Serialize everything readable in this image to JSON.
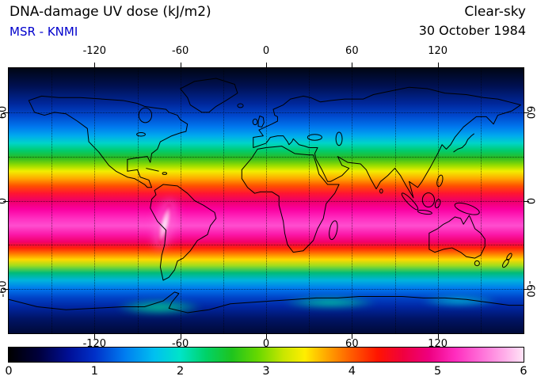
{
  "chart_data": {
    "type": "heatmap",
    "title": "DNA-damage UV dose (kJ/m2)",
    "source": "MSR - KNMI",
    "source_color": "#0000cc",
    "condition": "Clear-sky",
    "date": "30 October 1984",
    "geo": {
      "projection": "equirectangular",
      "lon_range": [
        -180,
        180
      ],
      "lat_range": [
        -90,
        90
      ],
      "lon_ticks": [
        -120,
        -60,
        0,
        60,
        120
      ],
      "lat_ticks": [
        60,
        0,
        -60
      ],
      "grid_step_deg": 30
    },
    "colorbar": {
      "min": 0,
      "max": 6,
      "units": "kJ/m2",
      "ticks": [
        0,
        1,
        2,
        3,
        4,
        5,
        6
      ],
      "stops": [
        {
          "value": 0.0,
          "color": "#000000"
        },
        {
          "value": 0.35,
          "color": "#00003c"
        },
        {
          "value": 0.7,
          "color": "#000f96"
        },
        {
          "value": 1.0,
          "color": "#0030c8"
        },
        {
          "value": 1.35,
          "color": "#007cf0"
        },
        {
          "value": 1.7,
          "color": "#00c0f0"
        },
        {
          "value": 2.0,
          "color": "#00e4c8"
        },
        {
          "value": 2.3,
          "color": "#00d268"
        },
        {
          "value": 2.6,
          "color": "#1ec41e"
        },
        {
          "value": 2.9,
          "color": "#66d800"
        },
        {
          "value": 3.2,
          "color": "#c8e600"
        },
        {
          "value": 3.45,
          "color": "#ffee00"
        },
        {
          "value": 3.7,
          "color": "#ffa800"
        },
        {
          "value": 4.0,
          "color": "#ff5a00"
        },
        {
          "value": 4.3,
          "color": "#ff1400"
        },
        {
          "value": 4.6,
          "color": "#f00040"
        },
        {
          "value": 4.9,
          "color": "#ee0080"
        },
        {
          "value": 5.2,
          "color": "#ff2cbe"
        },
        {
          "value": 5.5,
          "color": "#ff6ed8"
        },
        {
          "value": 5.8,
          "color": "#ffb2ea"
        },
        {
          "value": 6.0,
          "color": "#ffe4f6"
        }
      ]
    },
    "zonal_profile": {
      "description": "approximate zonal-mean DNA-damage UV dose read from the map colors (kJ/m2)",
      "latitudes": [
        90,
        75,
        60,
        45,
        35,
        30,
        25,
        20,
        15,
        10,
        5,
        0,
        -5,
        -10,
        -15,
        -20,
        -25,
        -30,
        -35,
        -40,
        -44,
        -49,
        -54,
        -60,
        -66,
        -72,
        -80,
        -90
      ],
      "values": [
        0.1,
        0.4,
        0.9,
        1.8,
        2.4,
        2.8,
        3.1,
        3.4,
        3.8,
        4.2,
        4.5,
        4.8,
        5.0,
        5.2,
        5.3,
        5.2,
        5.0,
        4.6,
        3.9,
        3.4,
        2.9,
        2.3,
        1.9,
        1.3,
        0.9,
        0.7,
        0.4,
        0.3
      ]
    },
    "zonal_gradient": [
      {
        "lat": 90,
        "color": "#000614"
      },
      {
        "lat": 78,
        "color": "#001050"
      },
      {
        "lat": 66,
        "color": "#00279a"
      },
      {
        "lat": 58,
        "color": "#0046cc"
      },
      {
        "lat": 50,
        "color": "#0078ee"
      },
      {
        "lat": 44,
        "color": "#00aaee"
      },
      {
        "lat": 39,
        "color": "#00d4c8"
      },
      {
        "lat": 34,
        "color": "#00cc6e"
      },
      {
        "lat": 29,
        "color": "#2cbb22"
      },
      {
        "lat": 24,
        "color": "#95dd00"
      },
      {
        "lat": 20,
        "color": "#f2ee00"
      },
      {
        "lat": 15,
        "color": "#ffa800"
      },
      {
        "lat": 10,
        "color": "#ff5000"
      },
      {
        "lat": 5,
        "color": "#ff1530"
      },
      {
        "lat": 0,
        "color": "#ee0066"
      },
      {
        "lat": -6,
        "color": "#fb00a2"
      },
      {
        "lat": -12,
        "color": "#ff2ec0"
      },
      {
        "lat": -17,
        "color": "#ff4ecf"
      },
      {
        "lat": -23,
        "color": "#fb17a8"
      },
      {
        "lat": -28,
        "color": "#f2006a"
      },
      {
        "lat": -32,
        "color": "#ff1e0c"
      },
      {
        "lat": -36,
        "color": "#ff7a00"
      },
      {
        "lat": -40,
        "color": "#ffd800"
      },
      {
        "lat": -44,
        "color": "#a0dd1e"
      },
      {
        "lat": -49,
        "color": "#00bb78"
      },
      {
        "lat": -54,
        "color": "#00b4dc"
      },
      {
        "lat": -60,
        "color": "#0076ee"
      },
      {
        "lat": -66,
        "color": "#0042c6"
      },
      {
        "lat": -72,
        "color": "#0026a2"
      },
      {
        "lat": -80,
        "color": "#001466"
      },
      {
        "lat": -90,
        "color": "#000a38"
      }
    ],
    "hotspots": [
      {
        "name": "andes-altiplano-maximum",
        "lon": -71,
        "lat": -16,
        "value": 6.0,
        "color": "#ffffff"
      },
      {
        "name": "antarctic-coast-enhancement-west",
        "lon": -75,
        "lat": -72,
        "value": 1.6,
        "color": "#00c890"
      },
      {
        "name": "antarctic-coast-enhancement-east",
        "lon": 45,
        "lat": -69,
        "value": 1.6,
        "color": "#00c8a0"
      },
      {
        "name": "antarctic-coast-enhancement-ross",
        "lon": 135,
        "lat": -68,
        "value": 1.4,
        "color": "#00bcd0"
      }
    ]
  }
}
